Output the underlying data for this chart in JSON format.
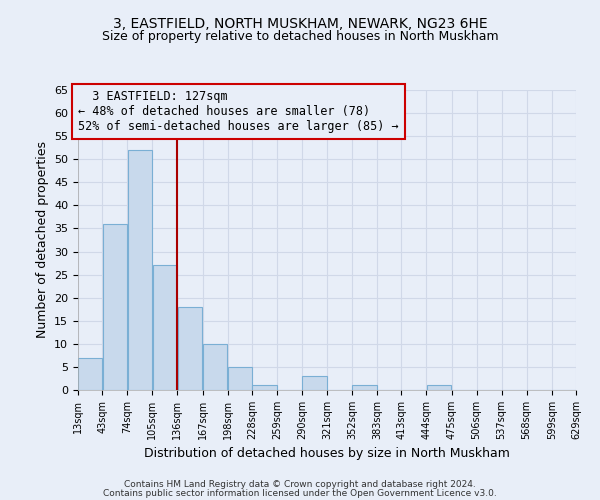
{
  "title1": "3, EASTFIELD, NORTH MUSKHAM, NEWARK, NG23 6HE",
  "title2": "Size of property relative to detached houses in North Muskham",
  "xlabel": "Distribution of detached houses by size in North Muskham",
  "ylabel": "Number of detached properties",
  "footer1": "Contains HM Land Registry data © Crown copyright and database right 2024.",
  "footer2": "Contains public sector information licensed under the Open Government Licence v3.0.",
  "annotation_line1": "3 EASTFIELD: 127sqm",
  "annotation_line2": "← 48% of detached houses are smaller (78)",
  "annotation_line3": "52% of semi-detached houses are larger (85) →",
  "bar_edges": [
    13,
    43,
    74,
    105,
    136,
    167,
    198,
    228,
    259,
    290,
    321,
    352,
    383,
    413,
    444,
    475,
    506,
    537,
    568,
    599,
    629
  ],
  "bar_heights": [
    7,
    36,
    52,
    27,
    18,
    10,
    5,
    1,
    0,
    3,
    0,
    1,
    0,
    0,
    1,
    0,
    0,
    0,
    0,
    0
  ],
  "bar_color": "#c8d9ec",
  "bar_edge_color": "#7aafd4",
  "vline_x": 136,
  "vline_color": "#aa0000",
  "annotation_box_color": "#cc0000",
  "bg_color": "#e8eef8",
  "grid_color": "#d0d8e8",
  "ylim": [
    0,
    65
  ],
  "yticks": [
    0,
    5,
    10,
    15,
    20,
    25,
    30,
    35,
    40,
    45,
    50,
    55,
    60,
    65
  ],
  "title1_fontsize": 10,
  "title2_fontsize": 9,
  "ylabel_fontsize": 9,
  "xlabel_fontsize": 9,
  "tick_fontsize": 8,
  "ann_fontsize": 8.5
}
